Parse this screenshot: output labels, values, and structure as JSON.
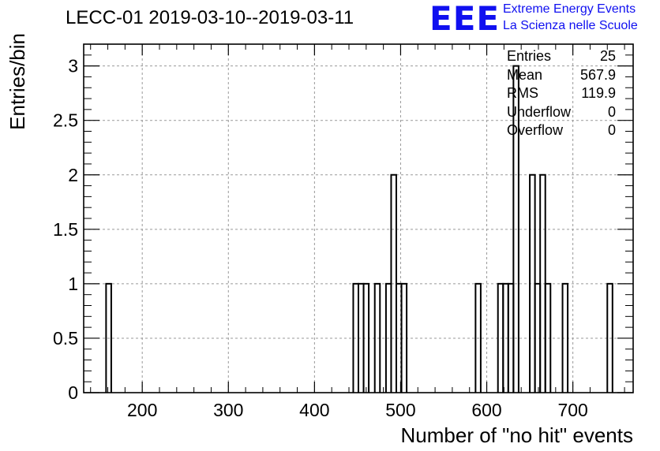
{
  "title": "LECC-01 2019-03-10--2019-03-11",
  "logo": {
    "mark": "EEE",
    "line1": "Extreme Energy Events",
    "line2": "La Scienza nelle Scuole",
    "color": "#1010f0"
  },
  "stats": [
    {
      "label": "Entries",
      "value": "25"
    },
    {
      "label": "Mean",
      "value": "567.9"
    },
    {
      "label": "RMS",
      "value": "119.9"
    },
    {
      "label": "Underflow",
      "value": "0"
    },
    {
      "label": "Overflow",
      "value": "0"
    }
  ],
  "chart_data": {
    "type": "bar",
    "style": "step-histogram",
    "title": "LECC-01 2019-03-10--2019-03-11",
    "xlabel": "Number of \"no hit\" events",
    "ylabel": "Entries/bin",
    "xlim": [
      132,
      770
    ],
    "ylim": [
      0,
      3.2
    ],
    "xticks": [
      200,
      300,
      400,
      500,
      600,
      700
    ],
    "yticks": [
      0,
      0.5,
      1,
      1.5,
      2,
      2.5,
      3
    ],
    "ytick_labels": [
      "0",
      "0.5",
      "1",
      "1.5",
      "2",
      "2.5",
      "3"
    ],
    "grid": true,
    "bins": [
      {
        "x0": 158,
        "x1": 164,
        "count": 1
      },
      {
        "x0": 445,
        "x1": 451,
        "count": 1
      },
      {
        "x0": 451,
        "x1": 457,
        "count": 1
      },
      {
        "x0": 457,
        "x1": 463,
        "count": 1
      },
      {
        "x0": 470,
        "x1": 476,
        "count": 1
      },
      {
        "x0": 483,
        "x1": 489,
        "count": 1
      },
      {
        "x0": 489,
        "x1": 495,
        "count": 2
      },
      {
        "x0": 495,
        "x1": 501,
        "count": 1
      },
      {
        "x0": 501,
        "x1": 507,
        "count": 1
      },
      {
        "x0": 587,
        "x1": 593,
        "count": 1
      },
      {
        "x0": 613,
        "x1": 619,
        "count": 1
      },
      {
        "x0": 619,
        "x1": 625,
        "count": 1
      },
      {
        "x0": 625,
        "x1": 631,
        "count": 1
      },
      {
        "x0": 631,
        "x1": 637,
        "count": 3
      },
      {
        "x0": 650,
        "x1": 656,
        "count": 2
      },
      {
        "x0": 656,
        "x1": 662,
        "count": 1
      },
      {
        "x0": 662,
        "x1": 668,
        "count": 2
      },
      {
        "x0": 668,
        "x1": 674,
        "count": 1
      },
      {
        "x0": 688,
        "x1": 694,
        "count": 1
      },
      {
        "x0": 740,
        "x1": 746,
        "count": 1
      }
    ]
  }
}
